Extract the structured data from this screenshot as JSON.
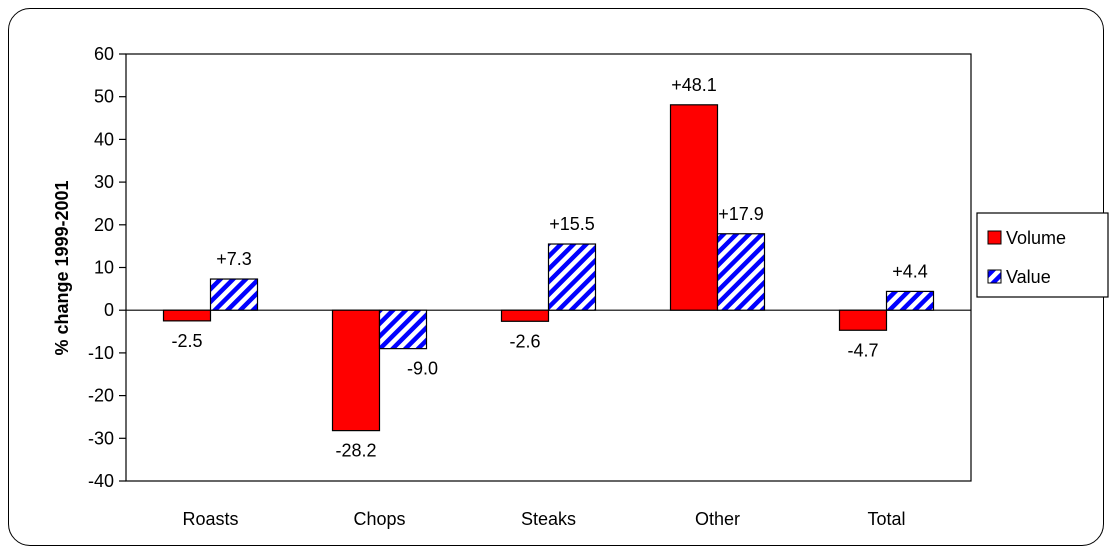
{
  "chart_data": {
    "type": "bar",
    "title": "",
    "xlabel": "",
    "ylabel": "% change 1999-2001",
    "categories": [
      "Roasts",
      "Chops",
      "Steaks",
      "Other",
      "Total"
    ],
    "series": [
      {
        "name": "Volume",
        "values": [
          -2.5,
          -28.2,
          -2.6,
          48.1,
          -4.7
        ],
        "labels": [
          "-2.5",
          "-28.2",
          "-2.6",
          "+48.1",
          "-4.7"
        ],
        "color": "#ff0000",
        "pattern": "solid"
      },
      {
        "name": "Value",
        "values": [
          7.3,
          -9.0,
          15.5,
          17.9,
          4.4
        ],
        "labels": [
          "+7.3",
          "-9.0",
          "+15.5",
          "+17.9",
          "+4.4"
        ],
        "color": "#0000ff",
        "pattern": "diagonal-stripes"
      }
    ],
    "ylim": [
      -40,
      60
    ],
    "yticks": [
      60,
      50,
      40,
      30,
      20,
      10,
      0,
      -10,
      -20,
      -30,
      -40
    ],
    "grid": false,
    "legend_position": "right"
  }
}
